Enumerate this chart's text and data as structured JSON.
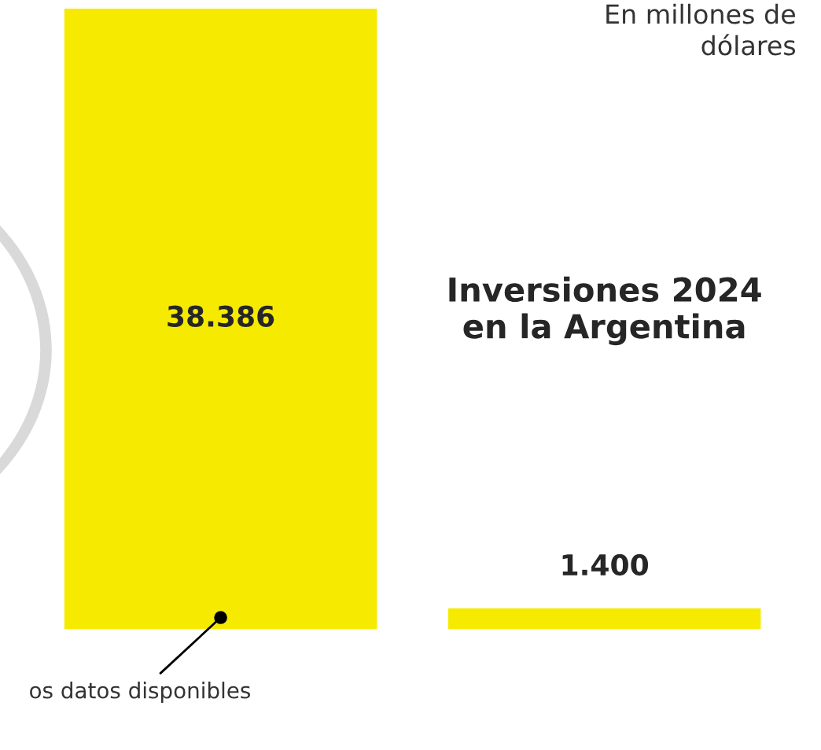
{
  "chart_data": {
    "type": "bar",
    "categories": [
      null,
      "Inversiones 2024\nen la Argentina"
    ],
    "values": [
      38386,
      1400
    ],
    "value_labels": [
      "38.386",
      "1.400"
    ],
    "color": "#f5ea00",
    "annotations": [
      "En millones de\ndólares",
      "os datos disponibles"
    ]
  }
}
